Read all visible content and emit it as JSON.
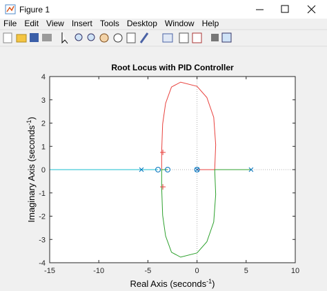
{
  "window": {
    "title": "Figure 1",
    "menu": [
      "File",
      "Edit",
      "View",
      "Insert",
      "Tools",
      "Desktop",
      "Window",
      "Help"
    ]
  },
  "chart_data": {
    "type": "line",
    "title": "Root Locus with PID Controller",
    "xlabel": [
      "Real Axis (seconds",
      "-1",
      ")"
    ],
    "ylabel": [
      "Imaginary Axis (seconds",
      "-1",
      ")"
    ],
    "xlim": [
      -15,
      10
    ],
    "ylim": [
      -4,
      4
    ],
    "xticks": [
      -15,
      -10,
      -5,
      0,
      5,
      10
    ],
    "yticks": [
      -4,
      -3,
      -2,
      -1,
      0,
      1,
      2,
      3,
      4
    ],
    "origin_lines": true,
    "series": [
      {
        "color": "#17becf",
        "marker": "none",
        "x": [
          -15,
          -5.66,
          -3.97
        ],
        "values": [
          0,
          0,
          0
        ]
      },
      {
        "color": "#e8403c",
        "marker": "none",
        "x": [
          0,
          1.8,
          1.9,
          1.7,
          1.0,
          0,
          -1.67,
          -2.6,
          -3.2,
          -3.5,
          -3.6,
          -3.6,
          -3.0
        ],
        "values": [
          0,
          0,
          1.07,
          2.25,
          3.1,
          3.58,
          3.76,
          3.55,
          2.85,
          1.96,
          0.77,
          0,
          0
        ]
      },
      {
        "color": "#2ca02c",
        "marker": "none",
        "x": [
          5.5,
          1.8,
          1.9,
          1.7,
          1.0,
          0,
          -1.67,
          -2.6,
          -3.2,
          -3.5,
          -3.6,
          -3.6,
          -3.0
        ],
        "values": [
          0,
          0,
          -1.07,
          -2.25,
          -3.1,
          -3.58,
          -3.76,
          -3.55,
          -2.85,
          -1.96,
          -0.77,
          0,
          0
        ]
      },
      {
        "color": "#0072bd",
        "marker": "x",
        "x": [
          -5.66,
          0,
          5.5
        ],
        "values": [
          0,
          0,
          0
        ]
      },
      {
        "color": "#0072bd",
        "marker": "o",
        "x": [
          -3.97,
          -2.99,
          0
        ],
        "values": [
          0,
          0,
          0
        ]
      },
      {
        "color": "#e8403c",
        "marker": "+",
        "x": [
          -3.48,
          -3.48
        ],
        "values": [
          0.74,
          -0.74
        ]
      }
    ]
  }
}
